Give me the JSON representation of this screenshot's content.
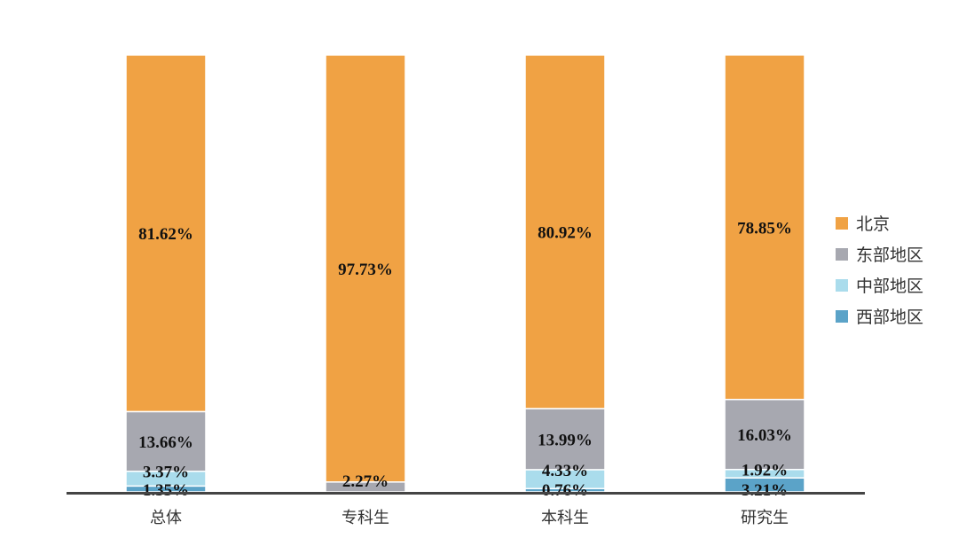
{
  "chart_data": {
    "type": "bar",
    "stacked": true,
    "categories": [
      "总体",
      "专科生",
      "本科生",
      "研究生"
    ],
    "series": [
      {
        "name": "西部地区",
        "color": "#5ba3c8",
        "values": [
          1.35,
          0,
          0.76,
          3.21
        ],
        "labels": [
          "1.35%",
          "",
          "0.76%",
          "3.21%"
        ]
      },
      {
        "name": "中部地区",
        "color": "#aadcec",
        "values": [
          3.37,
          0,
          4.33,
          1.92
        ],
        "labels": [
          "3.37%",
          "",
          "4.33%",
          "1.92%"
        ]
      },
      {
        "name": "东部地区",
        "color": "#a7a8b0",
        "values": [
          13.66,
          2.27,
          13.99,
          16.03
        ],
        "labels": [
          "13.66%",
          "2.27%",
          "13.99%",
          "16.03%"
        ]
      },
      {
        "name": "北京",
        "color": "#f0a244",
        "values": [
          81.62,
          97.73,
          80.92,
          78.85
        ],
        "labels": [
          "81.62%",
          "97.73%",
          "80.92%",
          "78.85%"
        ]
      }
    ],
    "legend_order": [
      "北京",
      "东部地区",
      "中部地区",
      "西部地区"
    ],
    "legend_position": "right",
    "ylim": [
      0,
      100
    ],
    "grid": false,
    "title": "",
    "xlabel": "",
    "ylabel": ""
  }
}
